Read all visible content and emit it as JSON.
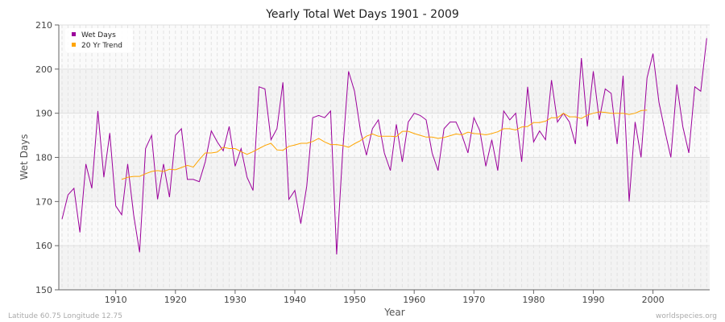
{
  "chart_data": {
    "type": "line",
    "title": "Yearly Total Wet Days 1901 - 2009",
    "xlabel": "Year",
    "ylabel": "Wet Days",
    "xlim": [
      1901,
      2009
    ],
    "ylim": [
      150,
      210
    ],
    "yticks": [
      150,
      160,
      170,
      180,
      190,
      200,
      210
    ],
    "xticks": [
      1910,
      1920,
      1930,
      1940,
      1950,
      1960,
      1970,
      1980,
      1990,
      2000
    ],
    "grid": true,
    "legend_position": "top-left",
    "series": [
      {
        "name": "Wet Days",
        "color": "#9b009b",
        "x_start": 1901,
        "values": [
          166,
          171.5,
          173,
          163,
          178.5,
          173,
          190.5,
          175.5,
          185.5,
          169,
          167,
          178.5,
          167,
          158.5,
          182,
          185,
          170.5,
          178.5,
          171,
          185,
          186.5,
          175,
          175,
          174.5,
          179,
          186,
          183.5,
          181.5,
          187,
          178,
          182,
          175.5,
          172.5,
          196,
          195.5,
          184,
          186.5,
          197,
          170.5,
          172.5,
          165,
          173.5,
          189,
          189.5,
          189,
          190.5,
          158,
          181,
          199.5,
          195,
          186,
          180.5,
          186.5,
          188.5,
          181,
          177,
          187.5,
          179,
          188,
          190,
          189.5,
          188.5,
          181,
          177,
          186.5,
          188,
          188,
          185,
          181,
          189,
          186,
          178,
          184,
          177,
          190.5,
          188.5,
          190,
          179,
          196,
          183.5,
          186,
          184,
          197.5,
          188,
          190,
          188,
          183,
          202.5,
          187,
          199.5,
          188.5,
          195.5,
          194.5,
          183,
          198.5,
          170,
          188,
          180,
          198,
          203.5,
          192.5,
          186,
          180,
          196.5,
          187,
          181,
          196,
          195,
          207
        ]
      },
      {
        "name": "20 Yr Trend",
        "color": "#ffa500",
        "x_start": 1911,
        "values": [
          175,
          175.5,
          175.7,
          175.7,
          176.3,
          176.8,
          177,
          176.8,
          177.3,
          177.2,
          177.7,
          178.2,
          177.8,
          179.5,
          181,
          181,
          181.2,
          182.3,
          182,
          182,
          181.3,
          180.7,
          181.3,
          182,
          182.7,
          183.2,
          181.7,
          181.6,
          182.5,
          182.8,
          183.2,
          183.2,
          183.6,
          184.3,
          183.5,
          182.9,
          182.9,
          182.7,
          182.3,
          183.1,
          183.8,
          184.8,
          185.3,
          184.8,
          184.8,
          184.8,
          184.7,
          185.9,
          185.9,
          185.4,
          185,
          184.6,
          184.6,
          184.3,
          184.5,
          184.9,
          185.3,
          185.1,
          185.7,
          185.4,
          185.3,
          185.1,
          185.4,
          185.8,
          186.5,
          186.5,
          186.2,
          186.9,
          187,
          187.9,
          187.9,
          188.2,
          189,
          189,
          190,
          189.2,
          189.2,
          188.8,
          189.6,
          190,
          190.3,
          190.2,
          190,
          190,
          190,
          189.7,
          190,
          190.6,
          190.7
        ]
      }
    ]
  },
  "footer": {
    "location": "Latitude 60.75 Longitude 12.75",
    "source": "worldspecies.org"
  }
}
